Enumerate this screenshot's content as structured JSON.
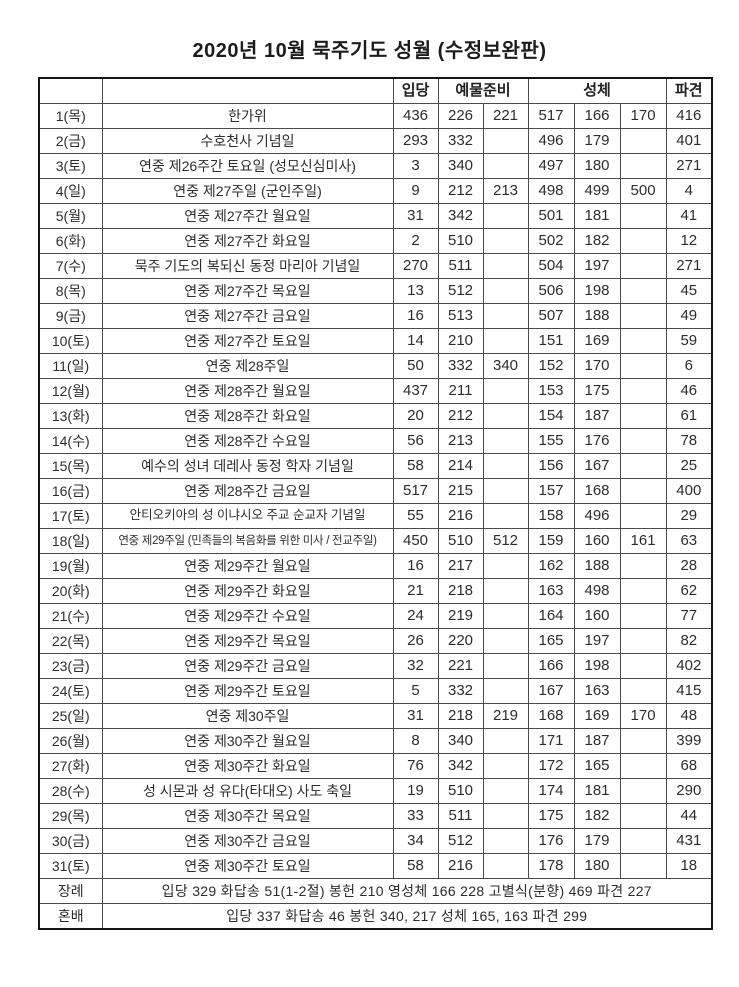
{
  "title": "2020년 10월 묵주기도 성월 (수정보완판)",
  "table": {
    "column_headers": {
      "entrance": "입당",
      "offertory": "예물준비",
      "communion": "성체",
      "dismissal": "파견"
    },
    "rows": [
      {
        "day": "1(목)",
        "liturgy": "한가위",
        "values": [
          "436",
          "226",
          "221",
          "517",
          "166",
          "170",
          "416"
        ]
      },
      {
        "day": "2(금)",
        "liturgy": "수호천사 기념일",
        "values": [
          "293",
          "332",
          "",
          "496",
          "179",
          "",
          "401"
        ]
      },
      {
        "day": "3(토)",
        "liturgy": "연중 제26주간 토요일 (성모신심미사)",
        "values": [
          "3",
          "340",
          "",
          "497",
          "180",
          "",
          "271"
        ]
      },
      {
        "day": "4(일)",
        "liturgy": "연중 제27주일 (군인주일)",
        "values": [
          "9",
          "212",
          "213",
          "498",
          "499",
          "500",
          "4"
        ]
      },
      {
        "day": "5(월)",
        "liturgy": "연중 제27주간 월요일",
        "values": [
          "31",
          "342",
          "",
          "501",
          "181",
          "",
          "41"
        ]
      },
      {
        "day": "6(화)",
        "liturgy": "연중 제27주간 화요일",
        "values": [
          "2",
          "510",
          "",
          "502",
          "182",
          "",
          "12"
        ]
      },
      {
        "day": "7(수)",
        "liturgy": "묵주 기도의 복되신 동정 마리아 기념일",
        "values": [
          "270",
          "511",
          "",
          "504",
          "197",
          "",
          "271"
        ]
      },
      {
        "day": "8(목)",
        "liturgy": "연중 제27주간 목요일",
        "values": [
          "13",
          "512",
          "",
          "506",
          "198",
          "",
          "45"
        ]
      },
      {
        "day": "9(금)",
        "liturgy": "연중 제27주간 금요일",
        "values": [
          "16",
          "513",
          "",
          "507",
          "188",
          "",
          "49"
        ]
      },
      {
        "day": "10(토)",
        "liturgy": "연중 제27주간 토요일",
        "values": [
          "14",
          "210",
          "",
          "151",
          "169",
          "",
          "59"
        ]
      },
      {
        "day": "11(일)",
        "liturgy": "연중 제28주일",
        "values": [
          "50",
          "332",
          "340",
          "152",
          "170",
          "",
          "6"
        ]
      },
      {
        "day": "12(월)",
        "liturgy": "연중 제28주간 월요일",
        "values": [
          "437",
          "211",
          "",
          "153",
          "175",
          "",
          "46"
        ]
      },
      {
        "day": "13(화)",
        "liturgy": "연중 제28주간 화요일",
        "values": [
          "20",
          "212",
          "",
          "154",
          "187",
          "",
          "61"
        ]
      },
      {
        "day": "14(수)",
        "liturgy": "연중 제28주간 수요일",
        "values": [
          "56",
          "213",
          "",
          "155",
          "176",
          "",
          "78"
        ]
      },
      {
        "day": "15(목)",
        "liturgy": "예수의 성녀 데레사 동정 학자 기념일",
        "values": [
          "58",
          "214",
          "",
          "156",
          "167",
          "",
          "25"
        ]
      },
      {
        "day": "16(금)",
        "liturgy": "연중 제28주간 금요일",
        "values": [
          "517",
          "215",
          "",
          "157",
          "168",
          "",
          "400"
        ]
      },
      {
        "day": "17(토)",
        "liturgy": "안티오키아의 성 이냐시오 주교 순교자 기념일",
        "values": [
          "55",
          "216",
          "",
          "158",
          "496",
          "",
          "29"
        ]
      },
      {
        "day": "18(일)",
        "liturgy": "연중 제29주일 (민족들의 복음화를 위한 미사 / 전교주일)",
        "values": [
          "450",
          "510",
          "512",
          "159",
          "160",
          "161",
          "63"
        ]
      },
      {
        "day": "19(월)",
        "liturgy": "연중 제29주간 월요일",
        "values": [
          "16",
          "217",
          "",
          "162",
          "188",
          "",
          "28"
        ]
      },
      {
        "day": "20(화)",
        "liturgy": "연중 제29주간 화요일",
        "values": [
          "21",
          "218",
          "",
          "163",
          "498",
          "",
          "62"
        ]
      },
      {
        "day": "21(수)",
        "liturgy": "연중 제29주간 수요일",
        "values": [
          "24",
          "219",
          "",
          "164",
          "160",
          "",
          "77"
        ]
      },
      {
        "day": "22(목)",
        "liturgy": "연중 제29주간 목요일",
        "values": [
          "26",
          "220",
          "",
          "165",
          "197",
          "",
          "82"
        ]
      },
      {
        "day": "23(금)",
        "liturgy": "연중 제29주간 금요일",
        "values": [
          "32",
          "221",
          "",
          "166",
          "198",
          "",
          "402"
        ]
      },
      {
        "day": "24(토)",
        "liturgy": "연중 제29주간 토요일",
        "values": [
          "5",
          "332",
          "",
          "167",
          "163",
          "",
          "415"
        ]
      },
      {
        "day": "25(일)",
        "liturgy": "연중 제30주일",
        "values": [
          "31",
          "218",
          "219",
          "168",
          "169",
          "170",
          "48"
        ]
      },
      {
        "day": "26(월)",
        "liturgy": "연중 제30주간 월요일",
        "values": [
          "8",
          "340",
          "",
          "171",
          "187",
          "",
          "399"
        ]
      },
      {
        "day": "27(화)",
        "liturgy": "연중 제30주간 화요일",
        "values": [
          "76",
          "342",
          "",
          "172",
          "165",
          "",
          "68"
        ]
      },
      {
        "day": "28(수)",
        "liturgy": "성 시몬과 성 유다(타대오) 사도 축일",
        "values": [
          "19",
          "510",
          "",
          "174",
          "181",
          "",
          "290"
        ]
      },
      {
        "day": "29(목)",
        "liturgy": "연중 제30주간 목요일",
        "values": [
          "33",
          "511",
          "",
          "175",
          "182",
          "",
          "44"
        ]
      },
      {
        "day": "30(금)",
        "liturgy": "연중 제30주간 금요일",
        "values": [
          "34",
          "512",
          "",
          "176",
          "179",
          "",
          "431"
        ]
      },
      {
        "day": "31(토)",
        "liturgy": "연중 제30주간 토요일",
        "values": [
          "58",
          "216",
          "",
          "178",
          "180",
          "",
          "18"
        ]
      }
    ],
    "footer_rows": [
      {
        "label": "장례",
        "text": "입당 329 화답송 51(1-2절) 봉헌 210 영성체 166 228 고별식(분향) 469 파견 227"
      },
      {
        "label": "혼배",
        "text": "입당 337 화답송 46 봉헌 340, 217 성체 165, 163 파견 299"
      }
    ]
  }
}
